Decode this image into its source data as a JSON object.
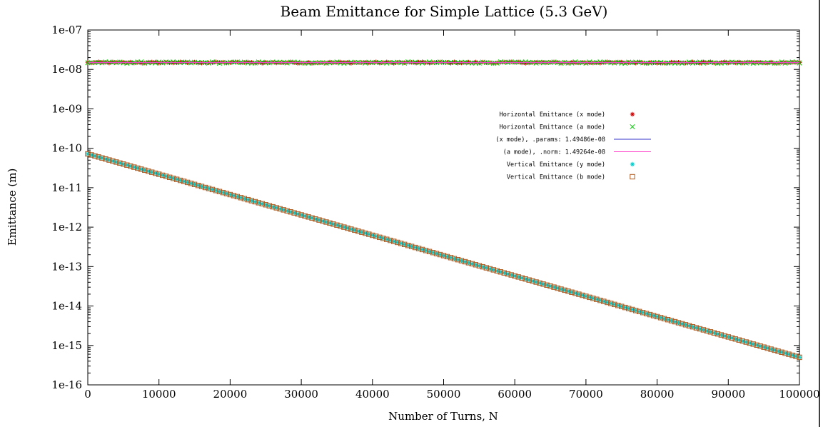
{
  "chart_data": {
    "type": "scatter",
    "title": "Beam Emittance for Simple Lattice (5.3 GeV)",
    "xlabel": "Number of Turns, N",
    "ylabel": "Emittance (m)",
    "xlim": [
      0,
      100000
    ],
    "ylim": [
      1e-16,
      1e-07
    ],
    "yscale": "log",
    "grid": false,
    "legend_position": "right",
    "x_ticks": [
      0,
      10000,
      20000,
      30000,
      40000,
      50000,
      60000,
      70000,
      80000,
      90000,
      100000
    ],
    "x_tick_labels": [
      "0",
      "10000",
      "20000",
      "30000",
      "40000",
      "50000",
      "60000",
      "70000",
      "80000",
      "90000",
      "100000"
    ],
    "y_ticks": [
      1e-07,
      1e-08,
      1e-09,
      1e-10,
      1e-11,
      1e-12,
      1e-13,
      1e-14,
      1e-15,
      1e-16
    ],
    "y_tick_labels": [
      "1e-07",
      "1e-08",
      "1e-09",
      "1e-10",
      "1e-11",
      "1e-12",
      "1e-13",
      "1e-14",
      "1e-15",
      "1e-16"
    ],
    "series": [
      {
        "name": "Horizontal Emittance (x mode)",
        "marker": "star",
        "color": "#cc0000",
        "kind": "noisy-constant",
        "value": 1.49486e-08,
        "noise": 0.04,
        "x_start": 0,
        "x_end": 100000,
        "x_step": 500
      },
      {
        "name": "Horizontal Emittance (a mode)",
        "marker": "x",
        "color": "#00cc00",
        "kind": "noisy-constant",
        "value": 1.49264e-08,
        "noise": 0.04,
        "x_start": 0,
        "x_end": 100000,
        "x_step": 500
      },
      {
        "name": "(x mode), .params: 1.49486e-08",
        "marker": "line",
        "color": "#3333cc",
        "kind": "constant-line",
        "value": 1.49486e-08
      },
      {
        "name": "(a mode), .norm: 1.49264e-08",
        "marker": "line",
        "color": "#ff44cc",
        "kind": "constant-line",
        "value": 1.49264e-08
      },
      {
        "name": "Vertical Emittance (y mode)",
        "marker": "star",
        "color": "#00cccc",
        "kind": "exponential",
        "y_start": 7.2e-11,
        "y_end": 5e-16,
        "x_start": 0,
        "x_end": 100000,
        "x_step": 500
      },
      {
        "name": "Vertical Emittance (b mode)",
        "marker": "square",
        "color": "#b05a1e",
        "kind": "exponential",
        "y_start": 7.2e-11,
        "y_end": 5e-16,
        "x_start": 0,
        "x_end": 100000,
        "x_step": 500
      }
    ]
  }
}
